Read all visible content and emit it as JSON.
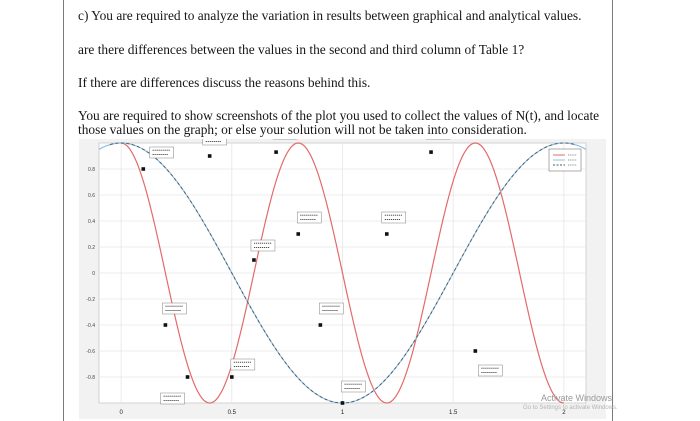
{
  "document": {
    "lines": [
      "c) You are required to analyze the variation in results between graphical and analytical values.",
      "are there differences between the values in the second and third column of Table 1?",
      "If there are differences discuss the reasons behind this.",
      "You are required to show screenshots of the plot you used to collect the values of N(t), and locate",
      "those values on the graph; or else your solution will not be taken into consideration."
    ]
  },
  "colors": {
    "red_series": "#e46a6a",
    "blue_series": "#8cc0e6",
    "dashed_series": "#555555",
    "plot_bg": "#ffffff",
    "figure_bg": "#f2f2f2"
  },
  "chart_data": {
    "type": "line",
    "xlim": [
      -0.1,
      2.1
    ],
    "ylim": [
      -1,
      1
    ],
    "x_ticks": [
      "0",
      "0.5",
      "1",
      "1.5",
      "2"
    ],
    "y_ticks": [
      "0.8",
      "0.6",
      "0.4",
      "0.2",
      "0",
      "-0.2",
      "-0.4",
      "-0.6",
      "-0.8"
    ],
    "grid": true,
    "legend": "top-right",
    "series": [
      {
        "style": "solid",
        "color": "red",
        "frequency_hz": 1.25,
        "amplitude": 1,
        "x_range": [
          0,
          2
        ]
      },
      {
        "style": "solid",
        "color": "blue",
        "frequency_hz": 0.5,
        "amplitude": 1,
        "x_range": [
          -0.1,
          2.1
        ]
      },
      {
        "style": "dashed",
        "color": "dark",
        "frequency_hz": 0.5,
        "amplitude": 1,
        "x_range": [
          -0.05,
          2.05
        ]
      }
    ],
    "markers": [
      {
        "x": 0.1,
        "y": 0.8
      },
      {
        "x": 0.2,
        "y": -0.4
      },
      {
        "x": 0.3,
        "y": -0.8
      },
      {
        "x": 0.4,
        "y": 0.9
      },
      {
        "x": 0.5,
        "y": -0.8
      },
      {
        "x": 0.6,
        "y": 0.1
      },
      {
        "x": 0.7,
        "y": 0.93
      },
      {
        "x": 0.8,
        "y": 0.3
      },
      {
        "x": 0.9,
        "y": -0.4
      },
      {
        "x": 1.0,
        "y": -1
      },
      {
        "x": 1.2,
        "y": 0.3
      },
      {
        "x": 1.4,
        "y": 0.93
      },
      {
        "x": 1.6,
        "y": -0.6
      }
    ],
    "datatips": [
      {
        "x": 0.115,
        "y": 0.8,
        "dx": 14,
        "dy": -22
      },
      {
        "x": 0.2,
        "y": -0.4,
        "dx": 8,
        "dy": -22
      },
      {
        "x": 0.3,
        "y": -0.8,
        "dx": -16,
        "dy": 16
      },
      {
        "x": 0.4,
        "y": 0.9,
        "dx": 4,
        "dy": -22
      },
      {
        "x": 0.5,
        "y": -0.8,
        "dx": 10,
        "dy": -18
      },
      {
        "x": 0.6,
        "y": 0.1,
        "dx": 8,
        "dy": -20
      },
      {
        "x": 0.7,
        "y": 0.93,
        "dx": 8,
        "dy": -24
      },
      {
        "x": 0.8,
        "y": 0.3,
        "dx": 10,
        "dy": -22
      },
      {
        "x": 0.9,
        "y": -0.4,
        "dx": 10,
        "dy": -22
      },
      {
        "x": 1.0,
        "y": -1,
        "dx": 10,
        "dy": -22
      },
      {
        "x": 1.2,
        "y": 0.3,
        "dx": 6,
        "dy": -22
      },
      {
        "x": 1.4,
        "y": 0.93,
        "dx": 6,
        "dy": -24
      },
      {
        "x": 1.6,
        "y": -0.6,
        "dx": 14,
        "dy": 14
      }
    ]
  },
  "watermark": {
    "line1": "Activate Windows",
    "line2": "Go to Settings to activate Windows."
  }
}
